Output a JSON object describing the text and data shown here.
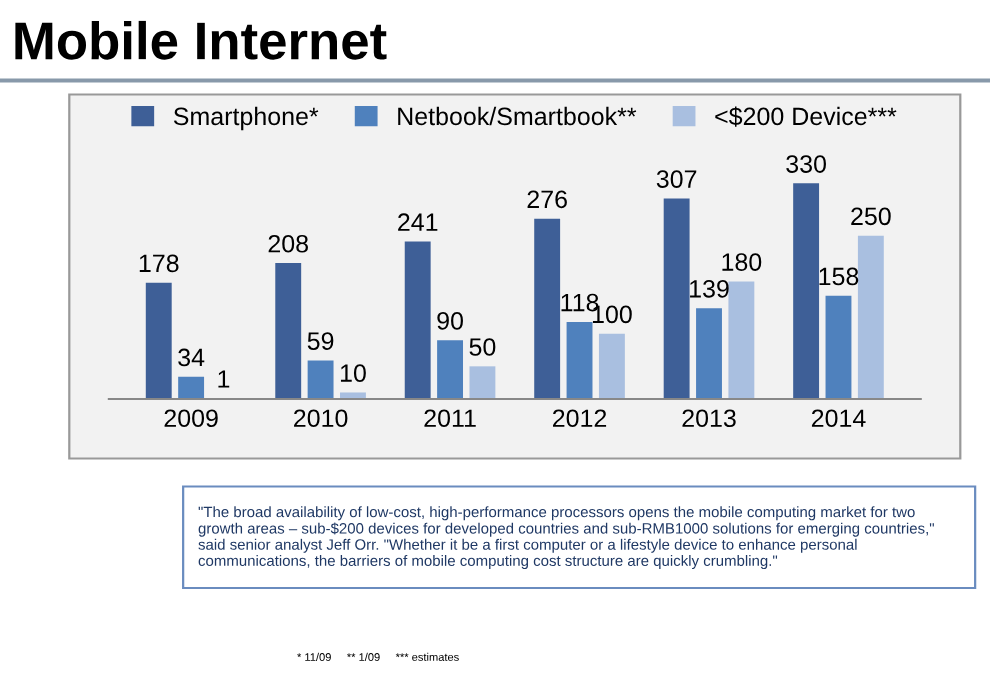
{
  "chart_data": {
    "type": "bar",
    "title": "Mobile Internet",
    "categories": [
      "2009",
      "2010",
      "2011",
      "2012",
      "2013",
      "2014"
    ],
    "series": [
      {
        "name": "Smartphone*",
        "color": "#3e5f97",
        "values": [
          178,
          208,
          241,
          276,
          307,
          330
        ]
      },
      {
        "name": "Netbook/Smartbook**",
        "color": "#4f81bd",
        "values": [
          34,
          59,
          90,
          118,
          139,
          158
        ]
      },
      {
        "name": "<$200 Device***",
        "color": "#a9bfe0",
        "values": [
          1,
          10,
          50,
          100,
          180,
          250
        ]
      }
    ],
    "data_labels": true,
    "legend": "top",
    "grid": false,
    "annotations": [
      "\"The broad availability of low-cost, high-performance processors opens the mobile computing market for two growth areas – sub-$200 devices for developed countries and sub-RMB1000 solutions for emerging countries,\" said senior analyst Jeff Orr. \"Whether it be a first computer or a lifestyle device to enhance personal communications, the barriers of mobile computing cost structure are quickly crumbling.\"",
      "* 11/09     ** 1/09     *** estimates"
    ]
  }
}
